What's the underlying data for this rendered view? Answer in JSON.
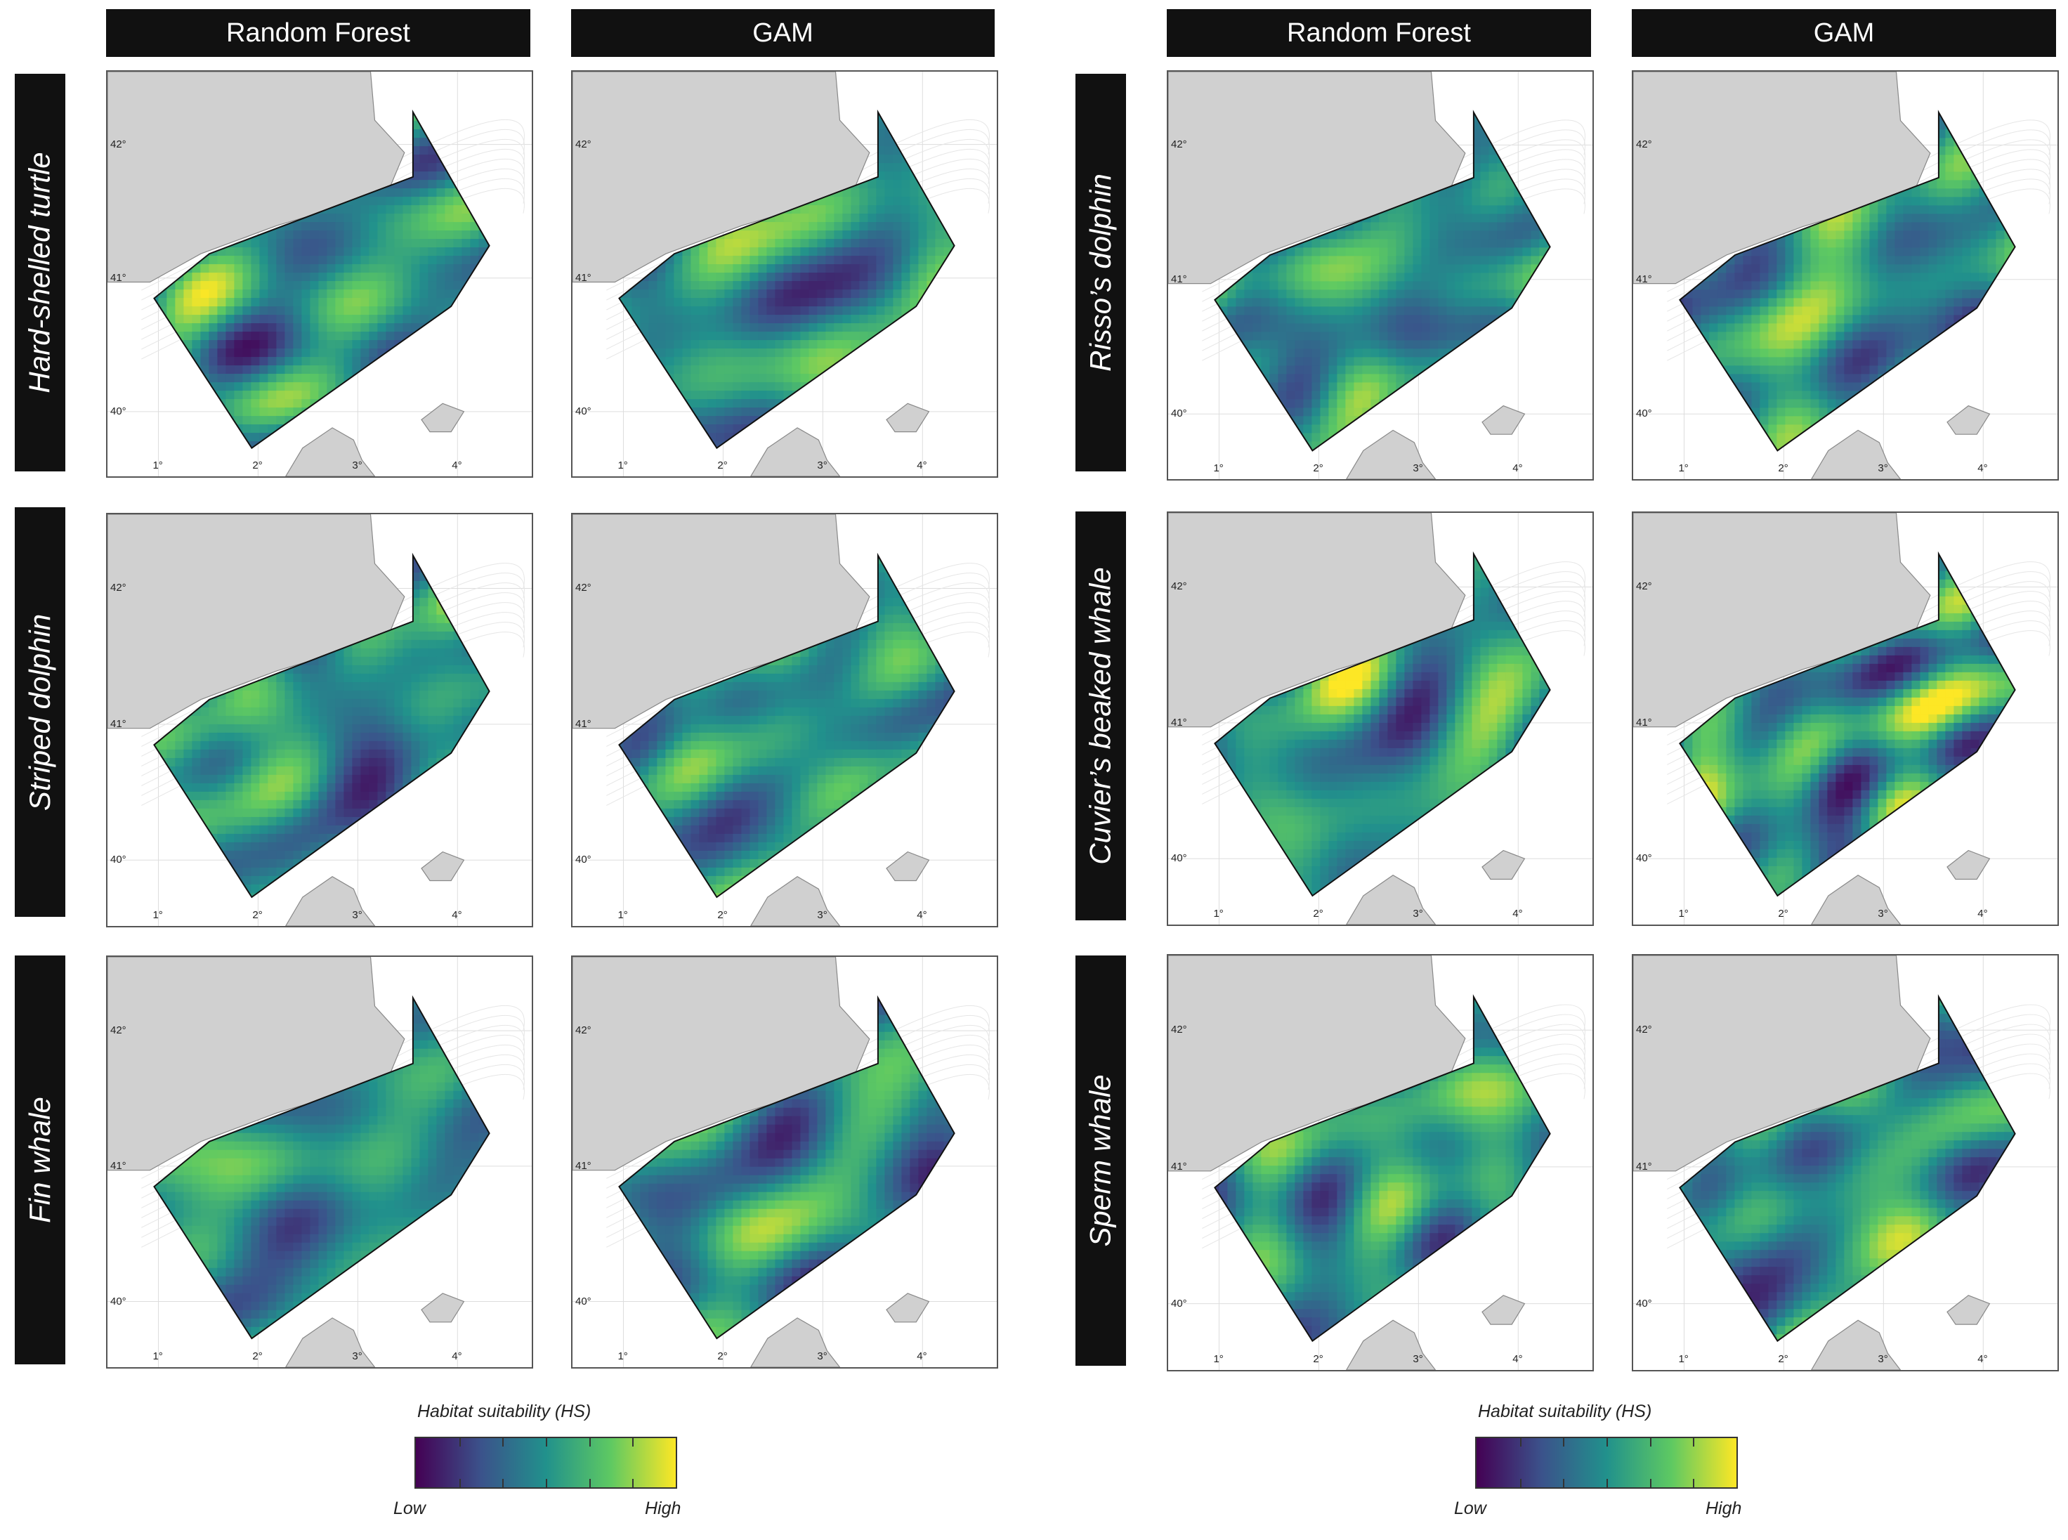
{
  "headers": [
    "Random Forest",
    "GAM",
    "Random Forest",
    "GAM"
  ],
  "species_left": [
    "Hard-shelled turtle",
    "Striped dolphin",
    "Fin whale"
  ],
  "species_right": [
    "Risso’s dolphin",
    "Cuvier’s beaked whale",
    "Sperm whale"
  ],
  "axis": {
    "lat_ticks": [
      "42°",
      "41°",
      "40°"
    ],
    "lon_ticks": [
      "1°",
      "2°",
      "3°",
      "4°"
    ]
  },
  "legend": {
    "title": "Habitat suitability (HS)",
    "low": "Low",
    "high": "High",
    "colormap": [
      "#440154",
      "#3b528b",
      "#21918c",
      "#5ec962",
      "#fde725"
    ]
  },
  "colors": {
    "land": "#d0d0d0",
    "header_bg": "#111111",
    "panel_border": "#555555"
  }
}
